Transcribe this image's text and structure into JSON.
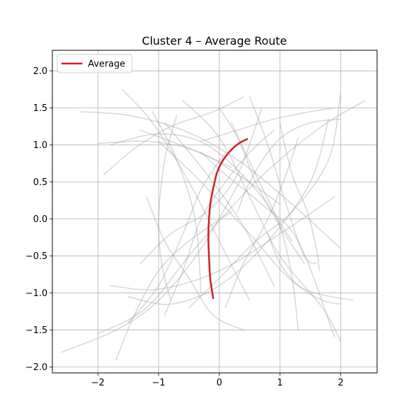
{
  "chart_data": {
    "type": "line",
    "title": "Cluster 4 – Average Route",
    "xlabel": "",
    "ylabel": "",
    "xlim": [
      -2.75,
      2.6
    ],
    "ylim": [
      -2.08,
      2.28
    ],
    "x_ticks": [
      -2,
      -1,
      0,
      1,
      2
    ],
    "y_ticks": [
      2.0,
      1.5,
      1.0,
      0.5,
      0.0,
      -0.5,
      -1.0,
      -1.5,
      -2.0
    ],
    "x_tick_labels": [
      "−2",
      "−1",
      "0",
      "1",
      "2"
    ],
    "y_tick_labels": [
      "2.0",
      "1.5",
      "1.0",
      "0.5",
      "0.0",
      "−0.5",
      "−1.0",
      "−1.5",
      "−2.0"
    ],
    "grid": true,
    "legend": {
      "position": "top-left",
      "entries": [
        {
          "label": "Average",
          "color": "#e31a1c"
        }
      ]
    },
    "colors": {
      "average": "#e31a1c",
      "trajectory": "#9a9a9a"
    },
    "average_route": {
      "name": "Average",
      "x": [
        -0.1,
        -0.15,
        -0.17,
        -0.18,
        -0.17,
        -0.14,
        -0.09,
        -0.04,
        0.05,
        0.18,
        0.32,
        0.46
      ],
      "y": [
        -1.07,
        -0.8,
        -0.5,
        -0.25,
        0.0,
        0.25,
        0.45,
        0.62,
        0.78,
        0.92,
        1.02,
        1.08
      ]
    },
    "trajectories": [
      {
        "x": [
          -2.3,
          -1.5,
          -0.6,
          0.3,
          1.2,
          2.0
        ],
        "y": [
          1.45,
          1.4,
          1.2,
          0.8,
          0.2,
          -0.4
        ]
      },
      {
        "x": [
          -1.6,
          -1.1,
          -0.5,
          0.0,
          0.5
        ],
        "y": [
          1.75,
          1.3,
          0.5,
          -0.3,
          -1.1
        ]
      },
      {
        "x": [
          -1.0,
          -0.3,
          0.5,
          1.3,
          2.2
        ],
        "y": [
          1.05,
          0.5,
          -0.2,
          -0.9,
          -1.1
        ]
      },
      {
        "x": [
          -1.8,
          -1.0,
          0.0,
          1.0,
          1.9
        ],
        "y": [
          -0.9,
          -0.95,
          -0.7,
          -0.2,
          0.3
        ]
      },
      {
        "x": [
          -2.0,
          -1.2,
          -0.4,
          0.6,
          1.6,
          2.4
        ],
        "y": [
          -1.55,
          -1.2,
          -0.4,
          0.5,
          1.2,
          1.6
        ]
      },
      {
        "x": [
          -2.6,
          -1.7,
          -1.0,
          -0.3,
          0.4
        ],
        "y": [
          -1.8,
          -1.5,
          -1.1,
          -0.4,
          0.6
        ]
      },
      {
        "x": [
          -1.8,
          -1.0,
          -0.2,
          0.6,
          1.2
        ],
        "y": [
          1.0,
          1.15,
          1.0,
          0.4,
          -0.3
        ]
      },
      {
        "x": [
          -0.3,
          0.3,
          0.9,
          1.5,
          1.9
        ],
        "y": [
          1.05,
          1.2,
          1.35,
          1.45,
          1.5
        ]
      },
      {
        "x": [
          0.2,
          0.6,
          1.0,
          1.2,
          1.3
        ],
        "y": [
          1.3,
          0.6,
          -0.1,
          -0.8,
          -1.5
        ]
      },
      {
        "x": [
          -0.9,
          -0.6,
          -0.3,
          0.1,
          0.5,
          0.9
        ],
        "y": [
          -1.3,
          -0.7,
          0.0,
          0.5,
          0.9,
          1.2
        ]
      },
      {
        "x": [
          -1.3,
          -0.8,
          -0.2,
          0.3,
          0.7
        ],
        "y": [
          -0.6,
          -0.2,
          0.1,
          0.6,
          1.5
        ]
      },
      {
        "x": [
          1.0,
          1.2,
          1.45,
          1.6,
          1.65
        ],
        "y": [
          1.3,
          0.6,
          0.1,
          -0.4,
          -0.7
        ]
      },
      {
        "x": [
          -1.1,
          -0.7,
          -0.4,
          -0.3
        ],
        "y": [
          1.45,
          0.8,
          0.0,
          -1.0
        ]
      },
      {
        "x": [
          -0.6,
          0.0,
          0.5,
          1.0,
          1.7,
          2.0
        ],
        "y": [
          1.6,
          1.1,
          0.3,
          -0.5,
          -1.2,
          -1.65
        ]
      },
      {
        "x": [
          -1.5,
          -0.8,
          0.0,
          0.8,
          1.5,
          1.8
        ],
        "y": [
          -1.05,
          -1.15,
          -0.9,
          -0.3,
          0.5,
          1.35
        ]
      },
      {
        "x": [
          -0.9,
          -0.2,
          0.4,
          0.9
        ],
        "y": [
          1.3,
          0.6,
          -0.1,
          -0.9
        ]
      },
      {
        "x": [
          -1.9,
          -1.4,
          -0.8,
          -0.1,
          0.4
        ],
        "y": [
          0.6,
          0.95,
          1.25,
          1.45,
          1.65
        ]
      },
      {
        "x": [
          -1.7,
          -1.4,
          -1.0,
          -0.5,
          0.2
        ],
        "y": [
          -1.9,
          -1.3,
          -0.7,
          -0.3,
          0.1
        ]
      },
      {
        "x": [
          -0.5,
          0.0,
          0.6,
          1.2,
          1.8,
          2.0
        ],
        "y": [
          -1.2,
          -0.8,
          -0.3,
          0.1,
          0.8,
          1.7
        ]
      },
      {
        "x": [
          0.5,
          0.8,
          1.1,
          1.4,
          1.6
        ],
        "y": [
          1.65,
          1.0,
          0.2,
          -0.5,
          -0.6
        ]
      },
      {
        "x": [
          -1.2,
          -0.9,
          -0.5,
          -0.1,
          0.4
        ],
        "y": [
          0.3,
          -0.3,
          -0.8,
          -1.3,
          -1.5
        ]
      },
      {
        "x": [
          0.1,
          0.4,
          0.8,
          1.1,
          1.3
        ],
        "y": [
          -1.2,
          -0.6,
          0.0,
          0.6,
          1.1
        ]
      },
      {
        "x": [
          -0.3,
          0.1,
          0.7,
          1.3,
          1.9
        ],
        "y": [
          0.9,
          0.6,
          0.2,
          -0.3,
          -1.6
        ]
      },
      {
        "x": [
          -1.3,
          -0.8,
          -0.2,
          0.4,
          1.0
        ],
        "y": [
          1.2,
          1.05,
          0.85,
          0.55,
          0.2
        ]
      },
      {
        "x": [
          -2.0,
          -1.2,
          -0.5,
          0.2
        ],
        "y": [
          1.02,
          1.05,
          0.95,
          0.7
        ]
      },
      {
        "x": [
          0.3,
          0.5,
          0.8,
          1.1,
          1.5,
          2.0
        ],
        "y": [
          0.1,
          0.5,
          0.9,
          1.15,
          1.3,
          1.35
        ]
      },
      {
        "x": [
          -0.7,
          -0.9,
          -1.0,
          -0.95,
          -0.8
        ],
        "y": [
          1.4,
          0.8,
          0.0,
          -0.6,
          -1.1
        ]
      },
      {
        "x": [
          0.8,
          1.0,
          1.3,
          1.7,
          2.0
        ],
        "y": [
          -0.2,
          -0.6,
          -0.9,
          -1.1,
          -1.15
        ]
      },
      {
        "x": [
          -1.5,
          -1.0,
          -0.6,
          -0.3,
          0.1
        ],
        "y": [
          -1.4,
          -0.9,
          -0.2,
          0.4,
          0.9
        ]
      },
      {
        "x": [
          0.0,
          0.3,
          0.6,
          1.0,
          1.4
        ],
        "y": [
          1.5,
          1.1,
          0.5,
          -0.1,
          -0.6
        ]
      }
    ]
  }
}
